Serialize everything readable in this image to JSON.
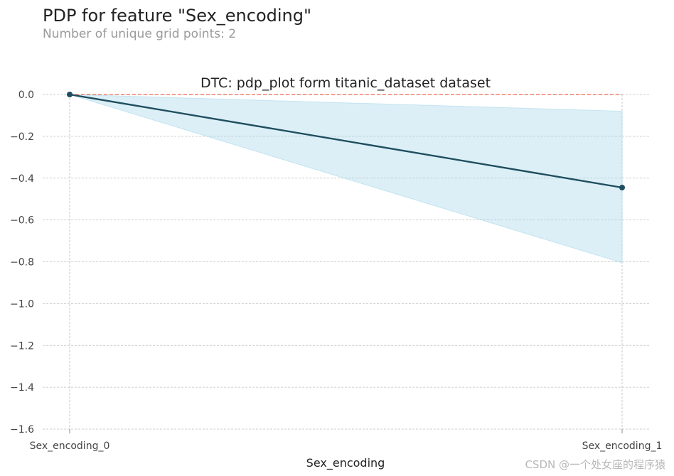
{
  "header": {
    "title": "PDP for feature \"Sex_encoding\"",
    "subtitle": "Number of unique grid points: 2"
  },
  "watermark": "CSDN @一个处女座的程序猿",
  "colors": {
    "line": "#1f4e5f",
    "band": "#a8d8ea",
    "baseline": "#e8674f",
    "grid": "#bdbdbd"
  },
  "chart_data": {
    "type": "line",
    "title": "DTC: pdp_plot form titanic_dataset dataset",
    "xlabel": "Sex_encoding",
    "ylabel": "",
    "categories": [
      "Sex_encoding_0",
      "Sex_encoding_1"
    ],
    "series": [
      {
        "values": [
          0.0,
          -0.445
        ]
      }
    ],
    "band": {
      "upper": [
        0.0,
        -0.08
      ],
      "lower": [
        0.0,
        -0.805
      ]
    },
    "baseline": 0.0,
    "ylim": [
      -1.6,
      0.0
    ],
    "yticks": [
      "0.0",
      "−0.2",
      "−0.4",
      "−0.6",
      "−0.8",
      "−1.0",
      "−1.2",
      "−1.4",
      "−1.6"
    ],
    "ytick_values": [
      0.0,
      -0.2,
      -0.4,
      -0.6,
      -0.8,
      -1.0,
      -1.2,
      -1.4,
      -1.6
    ],
    "grid": true
  }
}
